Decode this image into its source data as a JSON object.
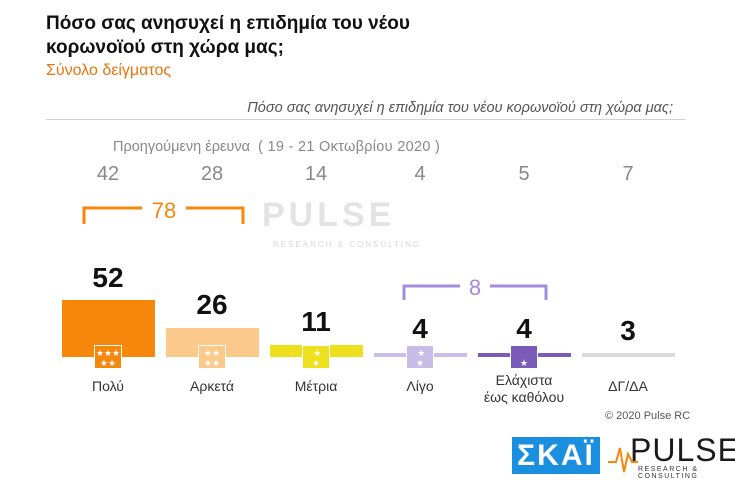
{
  "header": {
    "title": "Πόσο σας ανησυχεί η επιδημία του νέου κορωνοϊού στη χώρα μας;",
    "subtitle": "Σύνολο δείγματος"
  },
  "question": "Πόσο σας ανησυχεί η επιδημία του νέου κορωνοϊού στη χώρα μας;",
  "previous": {
    "label": "Προηγούμενη έρευνα",
    "dates": "( 19 - 21 Οκτωβρίου 2020 )"
  },
  "chart_data": {
    "type": "bar",
    "categories": [
      "Πολύ",
      "Αρκετά",
      "Μέτρια",
      "Λίγο",
      "Ελάχιστα έως καθόλου",
      "ΔΓ/ΔΑ"
    ],
    "values": [
      52,
      26,
      11,
      4,
      4,
      3
    ],
    "previous_values": [
      42,
      28,
      14,
      4,
      5,
      7
    ],
    "groups": [
      {
        "label": "78",
        "from": 0,
        "to": 1
      },
      {
        "label": "8",
        "from": 3,
        "to": 4
      }
    ],
    "colors": [
      "#f5870a",
      "#fbc98a",
      "#ede01c",
      "#c8bde6",
      "#7a5cb8",
      "#d9d9d9"
    ],
    "group_colors": [
      "#f5870a",
      "#a58bdc"
    ]
  },
  "categories_display": {
    "c0": "Πολύ",
    "c1": "Αρκετά",
    "c2": "Μέτρια",
    "c3": "Λίγο",
    "c4_line1": "Ελάχιστα",
    "c4_line2": "έως καθόλου",
    "c5": "ΔΓ/ΔΑ"
  },
  "values_display": {
    "cur": [
      "52",
      "26",
      "11",
      "4",
      "4",
      "3"
    ],
    "prev": [
      "42",
      "28",
      "14",
      "4",
      "5",
      "7"
    ],
    "g0": "78",
    "g1": "8"
  },
  "watermark": {
    "brand": "PULSE",
    "tagline": "RESEARCH & CONSULTING"
  },
  "footer": {
    "copyright": "© 2020 Pulse RC",
    "skai_logo": "ΣΚΑΪ",
    "pulse_logo": "PULSE",
    "pulse_tagline": "RESEARCH & CONSULTING"
  }
}
